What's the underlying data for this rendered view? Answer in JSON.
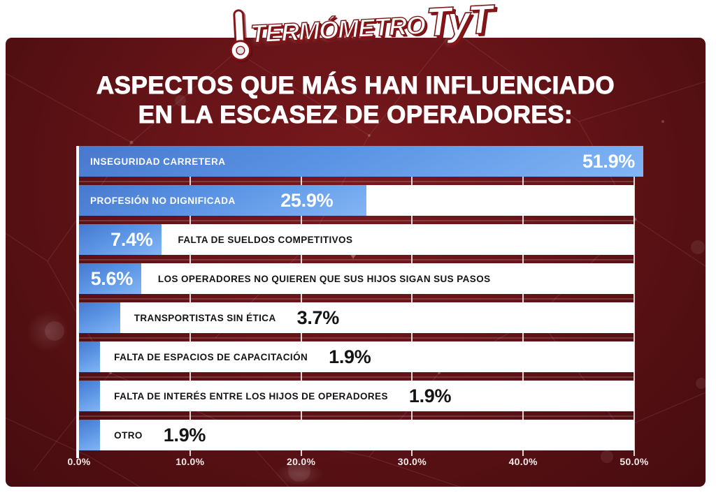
{
  "logo": {
    "brand": "TERMÓMETRO",
    "suffix": "TyT",
    "icon": "thermometer"
  },
  "title": {
    "line1": "ASPECTOS QUE MÁS HAN INFLUENCIADO",
    "line2": "EN LA ESCASEZ DE OPERADORES:"
  },
  "chart_data": {
    "type": "bar",
    "orientation": "horizontal",
    "title": "Aspectos que más han influenciado en la escasez de operadores",
    "categories": [
      "INSEGURIDAD CARRETERA",
      "PROFESIÓN NO DIGNIFICADA",
      "FALTA DE SUELDOS COMPETITIVOS",
      "LOS OPERADORES NO QUIEREN QUE SUS HIJOS SIGAN SUS PASOS",
      "TRANSPORTISTAS SIN ÉTICA",
      "FALTA DE ESPACIOS DE CAPACITACIÓN",
      "FALTA DE INTERÉS ENTRE LOS HIJOS DE OPERADORES",
      "OTRO"
    ],
    "values": [
      51.9,
      25.9,
      7.4,
      5.6,
      3.7,
      1.9,
      1.9,
      1.9
    ],
    "value_labels": [
      "51.9%",
      "25.9%",
      "7.4%",
      "5.6%",
      "3.7%",
      "1.9%",
      "1.9%",
      "1.9%"
    ],
    "xlim": [
      0,
      50
    ],
    "x_ticks": [
      "0.0%",
      "10.0%",
      "20.0%",
      "30.0%",
      "40.0%",
      "50.0%"
    ],
    "grid": "vertical-white-lines-visible-in-row-gaps",
    "legend": false,
    "label_placement": [
      "inside-bar",
      "inside-bar",
      "outside-right",
      "outside-right",
      "outside-right",
      "outside-right",
      "outside-right",
      "outside-right"
    ],
    "value_placement": [
      "inside-bar-right",
      "inside-bar-right",
      "inside-bar-right",
      "inside-bar-right",
      "after-label",
      "after-label",
      "after-label",
      "after-label"
    ],
    "colors": {
      "bar_gradient_start": "#4878cc",
      "bar_gradient_end": "#82b5f4",
      "row_track": "#ffffff",
      "text_inside_bar": "#ffffff",
      "text_outside_bar": "#141414",
      "axis_text": "#f2e8e8",
      "card_background_center": "#79191d",
      "card_background_edge": "#470c0f"
    }
  }
}
